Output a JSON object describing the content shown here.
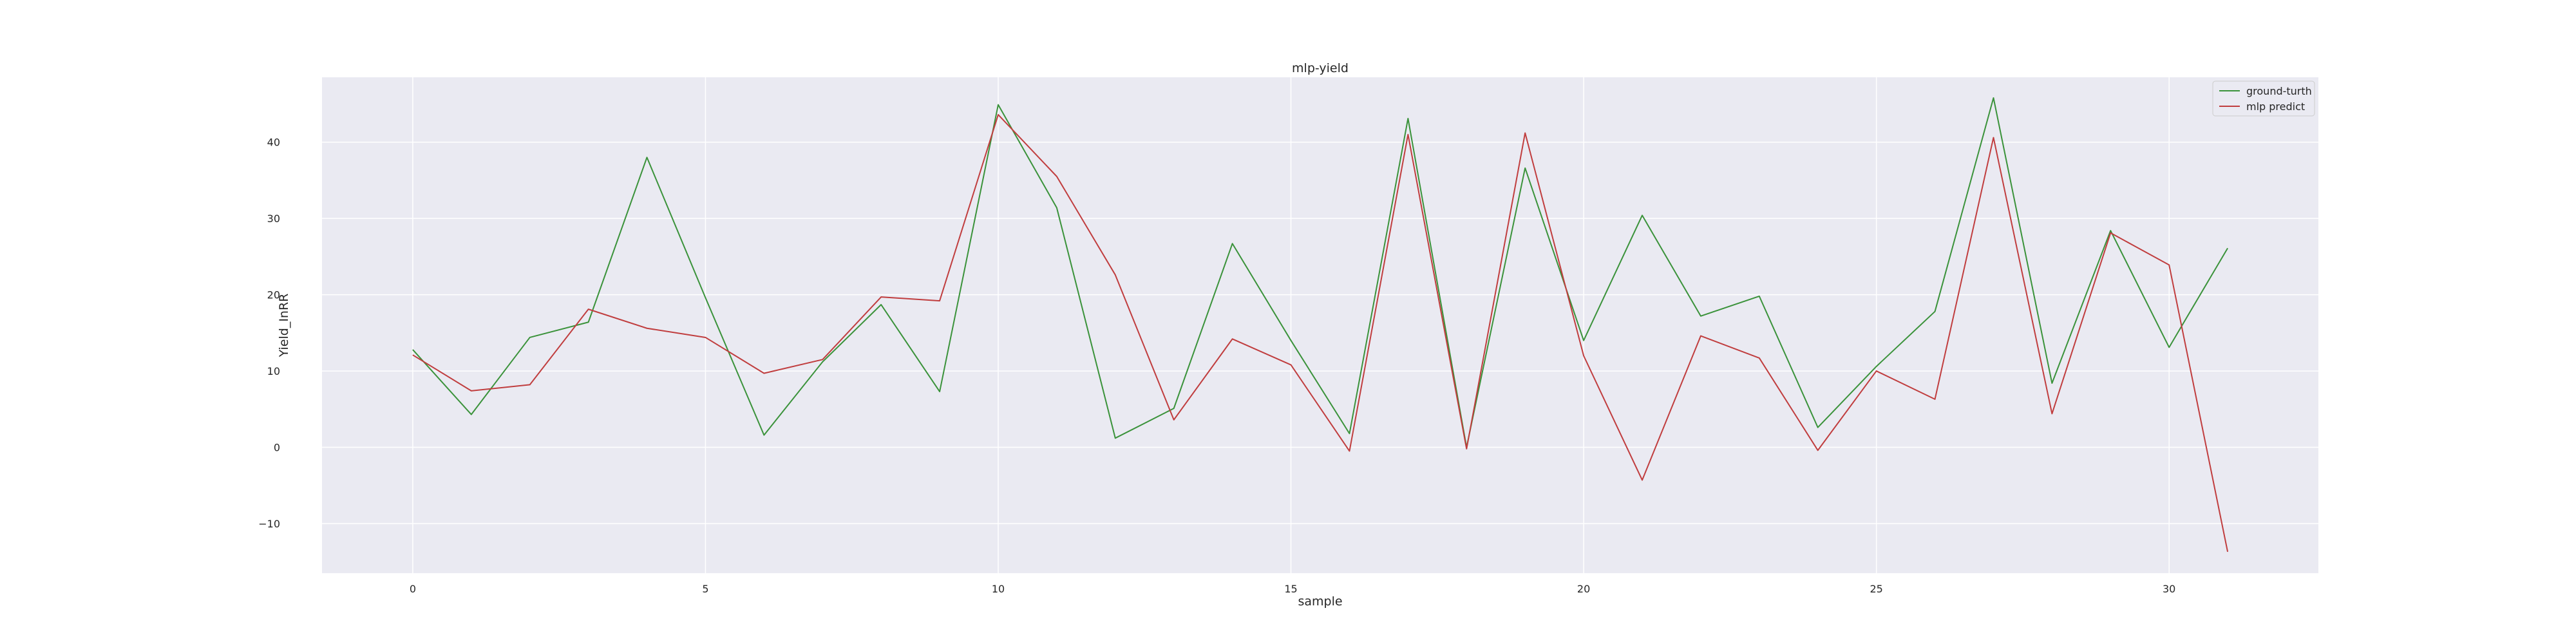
{
  "chart_data": {
    "type": "line",
    "title": "mlp-yield",
    "xlabel": "sample",
    "ylabel": "Yield_InRR",
    "xlim": [
      -1.55,
      32.55
    ],
    "ylim": [
      -16.5,
      48.5
    ],
    "xticks": [
      0,
      5,
      10,
      15,
      20,
      25,
      30
    ],
    "yticks": [
      -10,
      0,
      10,
      20,
      30,
      40
    ],
    "ytick_labels": [
      "−10",
      "0",
      "10",
      "20",
      "30",
      "40"
    ],
    "grid": true,
    "legend_position": "top-right",
    "x": [
      0,
      1,
      2,
      3,
      4,
      5,
      6,
      7,
      8,
      9,
      10,
      11,
      12,
      13,
      14,
      15,
      16,
      17,
      18,
      19,
      20,
      21,
      22,
      23,
      24,
      25,
      26,
      27,
      28,
      29,
      30,
      31
    ],
    "series": [
      {
        "name": "ground-turth",
        "color": "#3a923a",
        "values": [
          12.8,
          4.3,
          14.4,
          16.4,
          38.0,
          19.6,
          1.6,
          11.2,
          18.7,
          7.3,
          44.9,
          31.4,
          1.2,
          5.1,
          26.7,
          14.0,
          1.8,
          43.1,
          0.0,
          36.6,
          14.0,
          30.4,
          17.2,
          19.8,
          2.6,
          10.6,
          17.8,
          45.8,
          8.4,
          28.4,
          13.1,
          26.1
        ]
      },
      {
        "name": "mlp predict",
        "color": "#c03d3e",
        "values": [
          12.1,
          7.4,
          8.2,
          18.1,
          15.6,
          14.4,
          9.7,
          11.5,
          19.7,
          19.2,
          43.6,
          35.5,
          22.6,
          3.6,
          14.2,
          10.8,
          -0.5,
          41.0,
          -0.2,
          41.2,
          12.0,
          -4.3,
          14.6,
          11.7,
          -0.4,
          10.0,
          6.3,
          40.6,
          4.4,
          28.1,
          23.9,
          -13.7
        ]
      }
    ]
  }
}
